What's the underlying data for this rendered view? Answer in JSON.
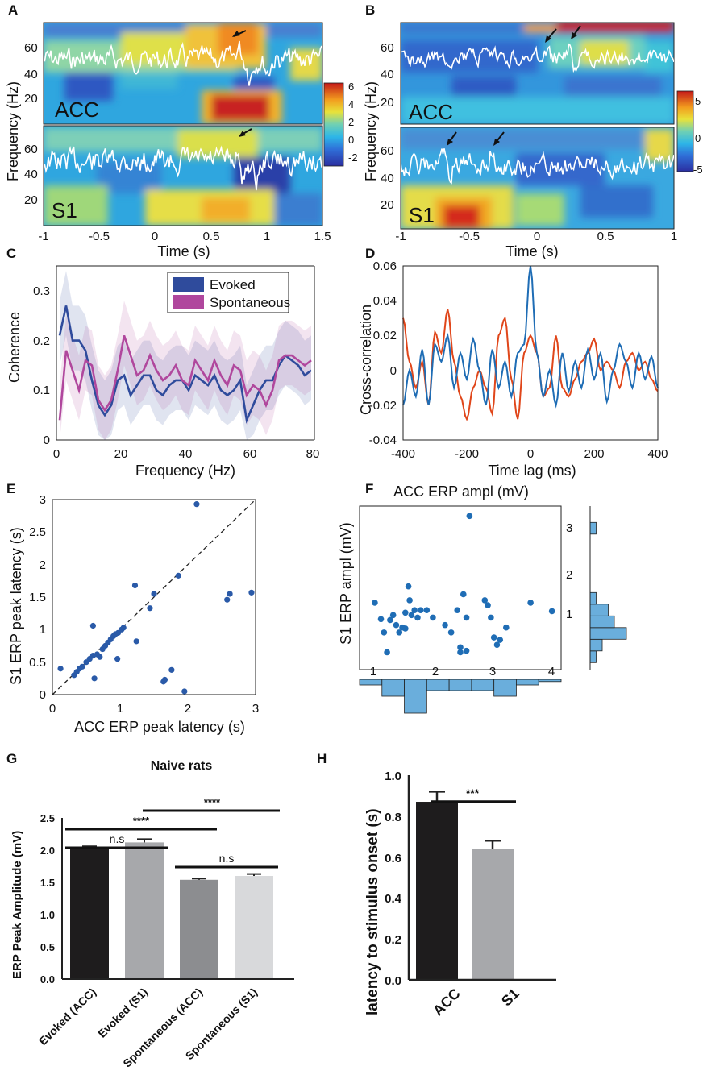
{
  "panel_letters": [
    "A",
    "B",
    "C",
    "D",
    "E",
    "F",
    "G",
    "H"
  ],
  "colors": {
    "evoked": "#2f4b9c",
    "spontaneous": "#b0479d",
    "xcorr_blue": "#1f6db5",
    "xcorr_red": "#e0461a",
    "scatter": "#2a5aa8",
    "hist": "#6aaedc",
    "bar_black": "#1e1c1d",
    "bar_lightgray": "#a7a8ab",
    "bar_midgray": "#8c8d90",
    "bar_verylight": "#d8d9db"
  },
  "chart_data": [
    {
      "panel": "A",
      "type": "heatmap",
      "regions": [
        "ACC",
        "S1"
      ],
      "ylabel": "Frequency (Hz)",
      "xlabel": "Time (s)",
      "xlim": [
        -1,
        1.5
      ],
      "xticks": [
        "-1",
        "-0.5",
        "0",
        "0.5",
        "1",
        "1.5"
      ],
      "yticks_top": [
        "60",
        "40",
        "20"
      ],
      "yticks_bottom": [
        "60",
        "40",
        "20"
      ],
      "colorbar_ticks": [
        "6",
        "4",
        "2",
        "0",
        "-2"
      ],
      "colorbar_range": [
        -3,
        6
      ]
    },
    {
      "panel": "B",
      "type": "heatmap",
      "regions": [
        "ACC",
        "S1"
      ],
      "ylabel": "Frequency (Hz)",
      "xlabel": "Time (s)",
      "xlim": [
        -1,
        1
      ],
      "xticks": [
        "-1",
        "-0.5",
        "0",
        "0.5",
        "1"
      ],
      "yticks_top": [
        "60",
        "40",
        "20"
      ],
      "yticks_bottom": [
        "60",
        "40",
        "20"
      ],
      "colorbar_ticks": [
        "5",
        "0",
        "-5"
      ],
      "colorbar_range": [
        -5,
        7
      ]
    },
    {
      "panel": "C",
      "type": "line",
      "xlabel": "Frequency (Hz)",
      "ylabel": "Coherence",
      "xlim": [
        0,
        80
      ],
      "ylim": [
        0,
        0.35
      ],
      "xticks": [
        "0",
        "20",
        "40",
        "60",
        "80"
      ],
      "yticks": [
        "0",
        "0.1",
        "0.2",
        "0.3"
      ],
      "series": [
        {
          "name": "Evoked",
          "x": [
            1,
            3,
            5,
            7,
            9,
            11,
            13,
            15,
            17,
            19,
            21,
            23,
            25,
            27,
            29,
            31,
            33,
            35,
            37,
            39,
            41,
            43,
            45,
            47,
            49,
            51,
            53,
            55,
            57,
            59,
            61,
            63,
            65,
            67,
            69,
            71,
            73,
            75,
            77,
            79
          ],
          "values": [
            0.21,
            0.27,
            0.2,
            0.2,
            0.18,
            0.12,
            0.07,
            0.05,
            0.07,
            0.12,
            0.13,
            0.09,
            0.11,
            0.13,
            0.13,
            0.1,
            0.09,
            0.11,
            0.12,
            0.12,
            0.1,
            0.13,
            0.12,
            0.11,
            0.13,
            0.1,
            0.09,
            0.1,
            0.12,
            0.04,
            0.07,
            0.1,
            0.12,
            0.12,
            0.15,
            0.17,
            0.16,
            0.15,
            0.13,
            0.14
          ]
        },
        {
          "name": "Spontaneous",
          "x": [
            1,
            3,
            5,
            7,
            9,
            11,
            13,
            15,
            17,
            19,
            21,
            23,
            25,
            27,
            29,
            31,
            33,
            35,
            37,
            39,
            41,
            43,
            45,
            47,
            49,
            51,
            53,
            55,
            57,
            59,
            61,
            63,
            65,
            67,
            69,
            71,
            73,
            75,
            77,
            79
          ],
          "values": [
            0.04,
            0.18,
            0.14,
            0.1,
            0.16,
            0.15,
            0.08,
            0.06,
            0.08,
            0.14,
            0.21,
            0.17,
            0.13,
            0.14,
            0.17,
            0.14,
            0.12,
            0.13,
            0.15,
            0.12,
            0.11,
            0.16,
            0.14,
            0.12,
            0.16,
            0.13,
            0.11,
            0.15,
            0.14,
            0.09,
            0.11,
            0.1,
            0.07,
            0.1,
            0.16,
            0.17,
            0.17,
            0.16,
            0.15,
            0.16
          ]
        }
      ]
    },
    {
      "panel": "D",
      "type": "line",
      "xlabel": "Time lag (ms)",
      "ylabel": "Cross-correlation",
      "xlim": [
        -400,
        400
      ],
      "ylim": [
        -0.04,
        0.06
      ],
      "xticks": [
        "-400",
        "-200",
        "0",
        "200",
        "400"
      ],
      "yticks": [
        "-0.04",
        "-0.02",
        "0",
        "0.02",
        "0.04",
        "0.06"
      ],
      "series": [
        {
          "name": "blue",
          "x": [
            -400,
            -380,
            -360,
            -340,
            -320,
            -300,
            -280,
            -260,
            -240,
            -220,
            -200,
            -180,
            -160,
            -140,
            -120,
            -100,
            -80,
            -60,
            -40,
            -20,
            0,
            20,
            40,
            60,
            80,
            100,
            120,
            140,
            160,
            180,
            200,
            220,
            240,
            260,
            280,
            300,
            320,
            340,
            360,
            380,
            400
          ],
          "values": [
            -0.02,
            0.0,
            -0.015,
            0.012,
            -0.02,
            0.015,
            0.005,
            0.02,
            -0.01,
            0.01,
            -0.005,
            0.018,
            0.0,
            -0.02,
            0.012,
            -0.01,
            0.005,
            -0.015,
            0.01,
            0.015,
            0.06,
            0.01,
            -0.015,
            0.0,
            -0.02,
            0.01,
            -0.012,
            0.005,
            -0.01,
            0.012,
            -0.005,
            0.01,
            -0.018,
            0.0,
            0.015,
            0.005,
            -0.01,
            0.01,
            -0.005,
            0.008,
            -0.01
          ]
        },
        {
          "name": "red",
          "x": [
            -400,
            -380,
            -360,
            -340,
            -320,
            -300,
            -280,
            -260,
            -240,
            -220,
            -200,
            -180,
            -160,
            -140,
            -120,
            -100,
            -80,
            -60,
            -40,
            -20,
            0,
            20,
            40,
            60,
            80,
            100,
            120,
            140,
            160,
            180,
            200,
            220,
            240,
            260,
            280,
            300,
            320,
            340,
            360,
            380,
            400
          ],
          "values": [
            0.03,
            0.005,
            -0.01,
            0.005,
            -0.02,
            0.022,
            0.01,
            0.035,
            0.005,
            -0.015,
            -0.028,
            -0.01,
            0.0,
            -0.01,
            -0.025,
            0.02,
            0.03,
            -0.005,
            -0.028,
            0.01,
            0.02,
            0.01,
            -0.015,
            -0.01,
            0.02,
            -0.01,
            -0.015,
            -0.005,
            0.005,
            0.01,
            0.018,
            0.0,
            0.005,
            0.0,
            -0.01,
            0.005,
            0.01,
            0.0,
            0.005,
            -0.005,
            -0.012
          ]
        }
      ]
    },
    {
      "panel": "E",
      "type": "scatter",
      "xlabel": "ACC ERP peak latency (s)",
      "ylabel": "S1 ERP peak latency (s)",
      "xlim": [
        0,
        3
      ],
      "ylim": [
        0,
        3
      ],
      "xticks": [
        "0",
        "1",
        "2",
        "3"
      ],
      "yticks": [
        "0",
        "0.5",
        "1",
        "1.5",
        "2",
        "2.5",
        "3"
      ],
      "x": [
        0.12,
        0.32,
        0.36,
        0.4,
        0.44,
        0.5,
        0.55,
        0.6,
        0.62,
        0.66,
        0.7,
        0.74,
        0.78,
        0.82,
        0.86,
        0.9,
        0.93,
        0.97,
        1.02,
        1.05,
        0.6,
        0.96,
        1.22,
        1.24,
        1.44,
        1.5,
        1.86,
        2.13,
        1.64,
        1.66,
        1.76,
        1.95,
        2.58,
        2.62,
        2.94
      ],
      "y": [
        0.4,
        0.3,
        0.35,
        0.4,
        0.43,
        0.5,
        0.55,
        0.6,
        0.25,
        0.62,
        0.58,
        0.7,
        0.75,
        0.8,
        0.85,
        0.9,
        0.93,
        0.95,
        1.0,
        1.03,
        1.06,
        0.55,
        1.68,
        0.82,
        1.33,
        1.55,
        1.83,
        2.93,
        0.2,
        0.23,
        0.38,
        0.05,
        1.46,
        1.55,
        1.57
      ]
    },
    {
      "panel": "F",
      "type": "scatter",
      "title": "ACC ERP ampl (mV)",
      "ylabel": "S1 ERP ampl (mV)",
      "xlim": [
        0.8,
        4.1
      ],
      "ylim": [
        0.2,
        3.5
      ],
      "xticks": [
        "1",
        "2",
        "3",
        "4"
      ],
      "yticks": [
        "1",
        "2",
        "3"
      ],
      "x": [
        1.05,
        1.15,
        1.2,
        1.3,
        1.35,
        1.4,
        1.45,
        1.5,
        1.55,
        1.6,
        1.62,
        1.65,
        1.7,
        1.75,
        1.8,
        1.9,
        2.0,
        2.2,
        2.3,
        2.4,
        2.45,
        2.5,
        2.55,
        2.6,
        2.45,
        2.55,
        2.85,
        2.9,
        2.95,
        3.0,
        3.05,
        3.1,
        3.2,
        3.6,
        3.95,
        1.55,
        1.25
      ],
      "y": [
        1.55,
        1.22,
        0.95,
        1.2,
        1.3,
        1.1,
        0.95,
        1.05,
        1.35,
        1.88,
        1.6,
        1.3,
        1.4,
        1.25,
        1.4,
        1.4,
        1.25,
        1.1,
        0.95,
        1.4,
        0.55,
        1.72,
        0.58,
        3.3,
        0.65,
        1.25,
        1.6,
        1.5,
        1.25,
        0.85,
        0.7,
        0.8,
        1.05,
        1.55,
        1.38,
        1.03,
        0.55
      ],
      "hist_right": {
        "bins": [
          "0.5",
          "0.75",
          "1.0",
          "1.25",
          "1.5",
          "1.75",
          "2.0",
          "2.25",
          "2.5",
          "2.75",
          "3.0",
          "3.25"
        ],
        "counts": [
          1,
          2,
          6,
          4,
          3,
          1,
          0,
          0,
          0,
          0,
          0,
          1
        ]
      },
      "hist_bottom": {
        "bins": [
          "0.8",
          "1.2",
          "1.6",
          "2.0",
          "2.4",
          "2.8",
          "3.2",
          "3.6",
          "4.0"
        ],
        "counts": [
          1,
          3,
          6,
          2,
          2,
          2,
          3,
          1,
          0.4
        ]
      }
    },
    {
      "panel": "G",
      "type": "bar",
      "title": "Naive rats",
      "ylabel": "ERP Peak Amplitude (mV)",
      "categories": [
        "Evoked (ACC)",
        "Evoked (S1)",
        "Spontaneous (ACC)",
        "Spontaneous (S1)"
      ],
      "values": [
        2.02,
        2.12,
        1.54,
        1.6
      ],
      "errors": [
        0.04,
        0.05,
        0.02,
        0.03
      ],
      "ylim": [
        0,
        2.5
      ],
      "yticks": [
        "0.0",
        "0.5",
        "1.0",
        "1.5",
        "2.0",
        "2.5"
      ],
      "significance": [
        {
          "from": 0,
          "to": 1,
          "label": "n.s"
        },
        {
          "from": 2,
          "to": 3,
          "label": "n.s"
        },
        {
          "from": 0,
          "to": 2,
          "label": "****"
        },
        {
          "from": 1,
          "to": 3,
          "label": "****"
        }
      ]
    },
    {
      "panel": "H",
      "type": "bar",
      "ylabel": "latency to stimulus onset (s)",
      "categories": [
        "ACC",
        "S1"
      ],
      "values": [
        0.87,
        0.64
      ],
      "errors": [
        0.05,
        0.04
      ],
      "ylim": [
        0,
        1.0
      ],
      "yticks": [
        "0.0",
        "0.2",
        "0.4",
        "0.6",
        "0.8",
        "1.0"
      ],
      "significance": [
        {
          "from": 0,
          "to": 1,
          "label": "***"
        }
      ]
    }
  ]
}
